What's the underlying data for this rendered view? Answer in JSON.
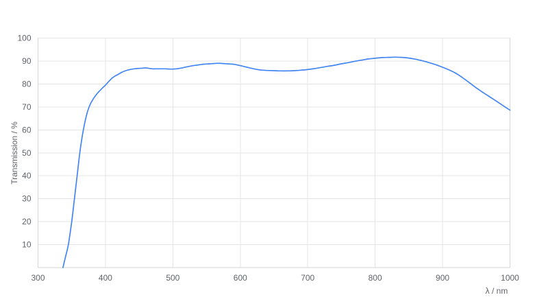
{
  "chart": {
    "background": "#ffffff",
    "grid_color": "#e4e4e4",
    "frame_color": "#d6d6d6",
    "tick_text_color": "#5f6368",
    "line_color": "#4285f4"
  },
  "chart_data": {
    "type": "line",
    "title": "",
    "xlabel": "λ / nm",
    "ylabel": "Transmission / %",
    "xlim": [
      300,
      1000
    ],
    "ylim": [
      0,
      100
    ],
    "x_ticks": [
      300,
      400,
      500,
      600,
      700,
      800,
      900,
      1000
    ],
    "y_ticks": [
      10,
      20,
      30,
      40,
      50,
      60,
      70,
      80,
      90,
      100
    ],
    "grid": true,
    "legend": false,
    "series": [
      {
        "name": "Transmission",
        "color": "#4285f4",
        "points": [
          [
            337,
            0
          ],
          [
            341,
            5
          ],
          [
            345,
            10
          ],
          [
            350,
            20
          ],
          [
            354,
            30
          ],
          [
            358,
            40
          ],
          [
            362,
            50
          ],
          [
            366,
            58
          ],
          [
            370,
            64
          ],
          [
            374,
            68.5
          ],
          [
            378,
            71.5
          ],
          [
            382,
            73.5
          ],
          [
            386,
            75.2
          ],
          [
            390,
            76.6
          ],
          [
            395,
            78.1
          ],
          [
            400,
            79.5
          ],
          [
            405,
            81.1
          ],
          [
            410,
            82.6
          ],
          [
            415,
            83.6
          ],
          [
            420,
            84.4
          ],
          [
            425,
            85.2
          ],
          [
            430,
            85.8
          ],
          [
            435,
            86.2
          ],
          [
            440,
            86.5
          ],
          [
            445,
            86.7
          ],
          [
            450,
            86.8
          ],
          [
            455,
            86.9
          ],
          [
            460,
            87.0
          ],
          [
            465,
            86.8
          ],
          [
            470,
            86.6
          ],
          [
            475,
            86.6
          ],
          [
            480,
            86.6
          ],
          [
            485,
            86.6
          ],
          [
            490,
            86.6
          ],
          [
            495,
            86.5
          ],
          [
            500,
            86.5
          ],
          [
            505,
            86.6
          ],
          [
            510,
            86.8
          ],
          [
            515,
            87.1
          ],
          [
            520,
            87.4
          ],
          [
            525,
            87.7
          ],
          [
            530,
            88.0
          ],
          [
            535,
            88.2
          ],
          [
            540,
            88.4
          ],
          [
            545,
            88.6
          ],
          [
            550,
            88.7
          ],
          [
            555,
            88.8
          ],
          [
            560,
            88.9
          ],
          [
            565,
            89.0
          ],
          [
            570,
            89.0
          ],
          [
            575,
            88.9
          ],
          [
            580,
            88.8
          ],
          [
            585,
            88.7
          ],
          [
            590,
            88.6
          ],
          [
            595,
            88.3
          ],
          [
            600,
            88.0
          ],
          [
            610,
            87.3
          ],
          [
            620,
            86.6
          ],
          [
            630,
            86.1
          ],
          [
            640,
            85.9
          ],
          [
            650,
            85.8
          ],
          [
            660,
            85.7
          ],
          [
            670,
            85.7
          ],
          [
            680,
            85.8
          ],
          [
            690,
            86.0
          ],
          [
            700,
            86.3
          ],
          [
            710,
            86.7
          ],
          [
            720,
            87.2
          ],
          [
            730,
            87.7
          ],
          [
            740,
            88.2
          ],
          [
            750,
            88.8
          ],
          [
            760,
            89.3
          ],
          [
            770,
            89.9
          ],
          [
            780,
            90.4
          ],
          [
            790,
            90.9
          ],
          [
            800,
            91.2
          ],
          [
            810,
            91.5
          ],
          [
            820,
            91.6
          ],
          [
            830,
            91.7
          ],
          [
            840,
            91.6
          ],
          [
            850,
            91.3
          ],
          [
            860,
            90.8
          ],
          [
            870,
            90.1
          ],
          [
            880,
            89.3
          ],
          [
            890,
            88.4
          ],
          [
            900,
            87.3
          ],
          [
            910,
            86.1
          ],
          [
            920,
            84.6
          ],
          [
            930,
            82.7
          ],
          [
            940,
            80.5
          ],
          [
            950,
            78.3
          ],
          [
            960,
            76.3
          ],
          [
            970,
            74.4
          ],
          [
            980,
            72.5
          ],
          [
            990,
            70.5
          ],
          [
            1000,
            68.6
          ]
        ]
      }
    ]
  }
}
